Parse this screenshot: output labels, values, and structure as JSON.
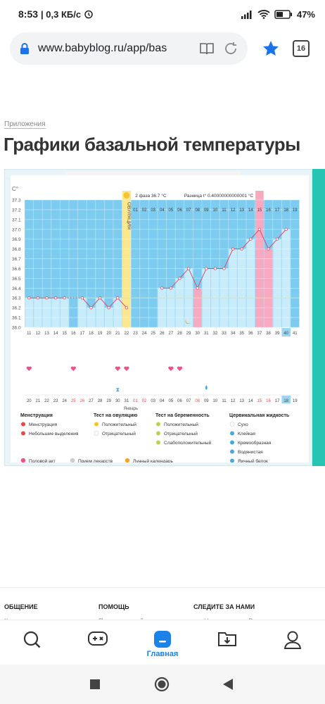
{
  "status": {
    "time": "8:53",
    "speed": "| 0,3 КБ/с",
    "battery": "47%"
  },
  "browser": {
    "url": "www.babyblog.ru/app/bas",
    "tab_count": "16"
  },
  "page": {
    "breadcrumb": "Приложения",
    "title": "Графики базальной температуры"
  },
  "chart_data": {
    "type": "line",
    "ylabel": "C°",
    "y_ticks": [
      "37.3",
      "37.2",
      "37.1",
      "37.0",
      "36.9",
      "36.8",
      "36.7",
      "36.6",
      "36.5",
      "36.4",
      "36.3",
      "36.2",
      "36.1",
      "36.0"
    ],
    "ylim": [
      36.0,
      37.3
    ],
    "phase_label": "2 фаза 36.7 °C",
    "diff_label": "Разница t° 0.40000000000001 °C",
    "ovulation_label": "ОВУЛЯЦИЯ",
    "cycle_days": [
      "11",
      "12",
      "13",
      "14",
      "15",
      "16",
      "17",
      "18",
      "19",
      "20",
      "21",
      "22",
      "23",
      "24",
      "25",
      "26",
      "27",
      "28",
      "29",
      "30",
      "31",
      "32",
      "33",
      "34",
      "35",
      "36",
      "37",
      "38",
      "39",
      "40",
      "41"
    ],
    "phase2_days": [
      "01",
      "02",
      "03",
      "04",
      "05",
      "06",
      "07",
      "08",
      "09",
      "10",
      "11",
      "12",
      "13",
      "14",
      "15",
      "16",
      "17",
      "18",
      "19"
    ],
    "dates": [
      "20",
      "21",
      "22",
      "23",
      "24",
      "25",
      "26",
      "27",
      "28",
      "29",
      "30",
      "31",
      "01",
      "02",
      "03",
      "04",
      "05",
      "06",
      "07",
      "08",
      "09",
      "10",
      "11",
      "12",
      "13",
      "14",
      "15",
      "16",
      "17",
      "18",
      "19"
    ],
    "month_label": "Январь",
    "values": [
      36.3,
      36.3,
      36.3,
      36.3,
      36.3,
      null,
      36.3,
      36.2,
      36.3,
      36.2,
      36.3,
      36.2,
      null,
      null,
      null,
      36.4,
      36.4,
      36.5,
      36.6,
      36.4,
      36.6,
      36.6,
      36.6,
      36.8,
      36.8,
      36.9,
      37.0,
      36.8,
      36.9,
      37.0,
      null
    ],
    "menstruation_days": [
      "25",
      "26",
      "08",
      "15",
      "16"
    ],
    "heart_indices": [
      0,
      5,
      10,
      11,
      16,
      17
    ],
    "hourglass_index": 10,
    "drop_index": 20
  },
  "legend": {
    "col1_title": "Менструация",
    "col1_items": [
      "Менструация",
      "Небольшие выделения"
    ],
    "col2_title": "Тест на овуляцию",
    "col2_items": [
      "Положительный",
      "Отрицательный"
    ],
    "col3_title": "Тест на беременность",
    "col3_items": [
      "Положительный",
      "Отрицательный",
      "Слабоположительный"
    ],
    "col4_title": "Цервикальная жидкость",
    "col4_items": [
      "Сухо",
      "Клейкая",
      "Кремообразная",
      "Водянистая",
      "Яичный белок"
    ],
    "extra": [
      "Половой акт",
      "Прием лекарств",
      "Лунный календарь"
    ]
  },
  "footer": {
    "col1": "ОБЩЕНИЕ",
    "col1_sub": "Комьюнити",
    "col2": "ПОМОЩЬ",
    "col2_sub": "Помощь по сайту",
    "col3": "СЛЕДИТЕ ЗА НАМИ",
    "col3_sub": "Наша группа в Вконтакте"
  },
  "nav": {
    "home_label": "Главная"
  },
  "colors": {
    "blue": "#7ecbf0",
    "light_blue": "#c9ecfb",
    "yellow": "#fbe790",
    "pink": "#f7a9c0",
    "teal": "#27c4b4",
    "accent": "#1a82e8"
  }
}
